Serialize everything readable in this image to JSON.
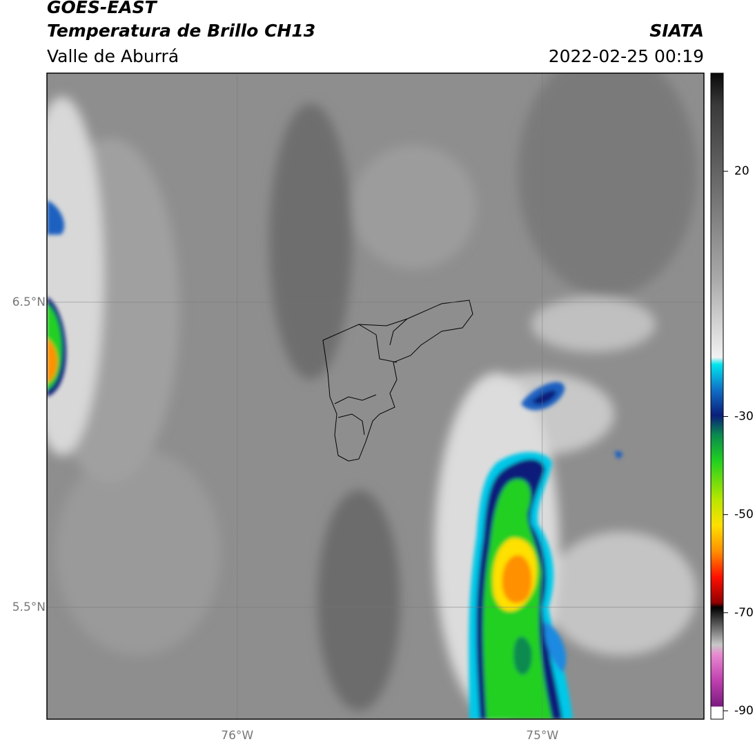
{
  "header": {
    "satellite": "GOES-EAST",
    "product": "Temperatura de Brillo CH13",
    "region": "Valle de Aburrá",
    "source": "SIATA",
    "datetime": "2022-02-25 00:19"
  },
  "map": {
    "xlim": [
      -76.624,
      -74.47
    ],
    "ylim": [
      5.133,
      7.251
    ],
    "xticks": [
      {
        "value": -76,
        "label": "76°W"
      },
      {
        "value": -75,
        "label": "75°W"
      }
    ],
    "yticks": [
      {
        "value": 6.5,
        "label": "6.5°N"
      },
      {
        "value": 5.5,
        "label": "5.5°N"
      }
    ]
  },
  "colorbar": {
    "lim": [
      -91.7,
      40
    ],
    "ticks": [
      20,
      -30,
      -50,
      -70,
      -90
    ]
  }
}
